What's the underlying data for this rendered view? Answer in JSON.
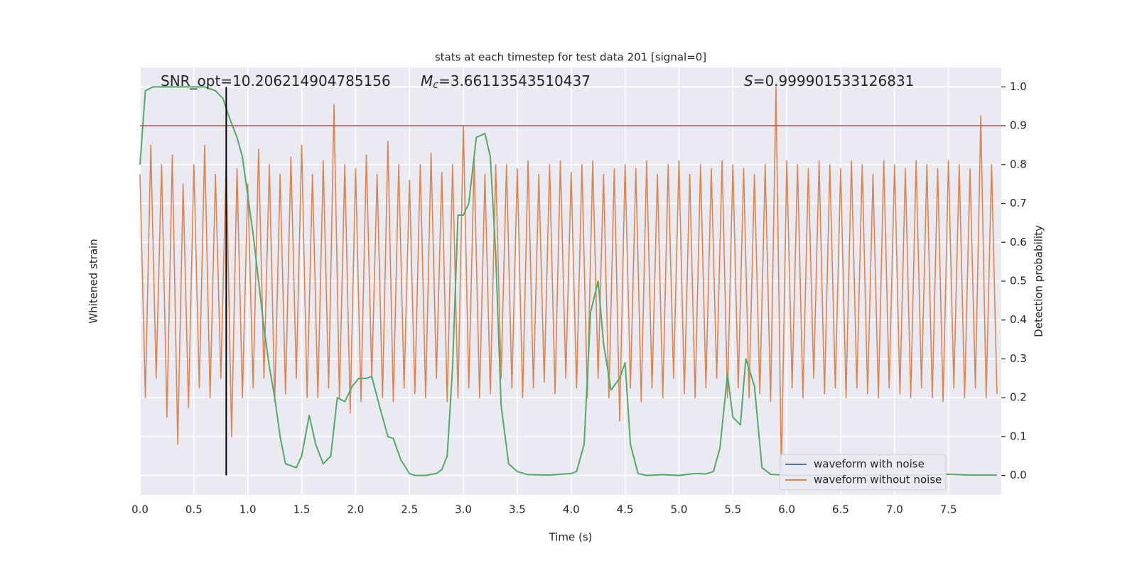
{
  "chart_data": {
    "type": "line",
    "title": "stats at each timestep for test data 201 [signal=0]",
    "annotations": [
      {
        "text": "SNR_opt=10.206214904785156"
      },
      {
        "symbol": "M",
        "subscript": "c",
        "text": "=3.66113543510437"
      },
      {
        "symbol": "S",
        "text": "=0.999901533126831"
      }
    ],
    "xlabel": "Time (s)",
    "ylabel": "Whitened strain",
    "y2label": "Detection probability",
    "xlim": [
      0,
      7.99
    ],
    "ylim": [
      -1.1,
      1.1
    ],
    "y2lim": [
      -0.05,
      1.05
    ],
    "xticks": [
      {
        "value": 0,
        "label": "0.0"
      },
      0.5,
      {
        "value": 1,
        "label": "1.0"
      },
      1.5,
      {
        "value": 2,
        "label": "2.0"
      },
      2.5,
      {
        "value": 3,
        "label": "3.0"
      },
      3.5,
      {
        "value": 4,
        "label": "4.0"
      },
      4.5,
      {
        "value": 5,
        "label": "5.0"
      },
      5.5,
      {
        "value": 6,
        "label": "6.0"
      },
      6.5,
      {
        "value": 7,
        "label": "7.0"
      },
      7.5
    ],
    "y2ticks": [
      {
        "value": 0,
        "label": "0.0"
      },
      0.1,
      0.2,
      0.3,
      0.4,
      0.5,
      0.6,
      0.7,
      0.8,
      0.9,
      {
        "value": 1,
        "label": "1.0"
      }
    ],
    "grid": true,
    "legend": "lower right",
    "series": [
      {
        "name": "waveform with noise",
        "color": "#4c72b0",
        "x": [],
        "values": []
      },
      {
        "name": "waveform without noise",
        "color": "#dd8452",
        "x": [
          0,
          0.05,
          0.1,
          0.15,
          0.2,
          0.25,
          0.3,
          0.35,
          0.4,
          0.45,
          0.5,
          0.55,
          0.6,
          0.65,
          0.7,
          0.75,
          0.8,
          0.85,
          0.9,
          0.95,
          1,
          1.05,
          1.1,
          1.15,
          1.2,
          1.25,
          1.3,
          1.35,
          1.4,
          1.45,
          1.5,
          1.55,
          1.6,
          1.65,
          1.7,
          1.75,
          1.8,
          1.85,
          1.9,
          1.95,
          2,
          2.05,
          2.1,
          2.15,
          2.2,
          2.25,
          2.3,
          2.35,
          2.4,
          2.45,
          2.5,
          2.55,
          2.6,
          2.65,
          2.7,
          2.75,
          2.8,
          2.85,
          2.9,
          2.95,
          3,
          3.05,
          3.1,
          3.15,
          3.2,
          3.25,
          3.3,
          3.35,
          3.4,
          3.45,
          3.5,
          3.55,
          3.6,
          3.65,
          3.7,
          3.75,
          3.8,
          3.85,
          3.9,
          3.95,
          4,
          4.05,
          4.1,
          4.15,
          4.2,
          4.25,
          4.3,
          4.35,
          4.4,
          4.45,
          4.5,
          4.55,
          4.6,
          4.65,
          4.7,
          4.75,
          4.8,
          4.85,
          4.9,
          4.95,
          5,
          5.05,
          5.1,
          5.15,
          5.2,
          5.25,
          5.3,
          5.35,
          5.4,
          5.45,
          5.5,
          5.55,
          5.6,
          5.65,
          5.7,
          5.75,
          5.8,
          5.85,
          5.9,
          5.95,
          6,
          6.05,
          6.1,
          6.15,
          6.2,
          6.25,
          6.3,
          6.35,
          6.4,
          6.45,
          6.5,
          6.55,
          6.6,
          6.65,
          6.7,
          6.75,
          6.8,
          6.85,
          6.9,
          6.95,
          7,
          7.05,
          7.1,
          7.15,
          7.2,
          7.25,
          7.3,
          7.35,
          7.4,
          7.45,
          7.5,
          7.55,
          7.6,
          7.65,
          7.7,
          7.75,
          7.8,
          7.85,
          7.9,
          7.95
        ],
        "values": [
          0.55,
          -0.6,
          0.7,
          -0.5,
          0.6,
          -0.7,
          0.65,
          -0.84,
          0.5,
          -0.65,
          0.6,
          -0.55,
          0.7,
          -0.6,
          0.55,
          -0.5,
          0.62,
          -0.8,
          0.58,
          -0.6,
          0.5,
          -0.55,
          0.68,
          -0.5,
          0.6,
          -0.62,
          0.55,
          -0.58,
          0.64,
          -0.5,
          0.7,
          -0.6,
          0.55,
          -0.6,
          0.62,
          -0.55,
          0.91,
          -0.6,
          0.6,
          -0.68,
          0.58,
          -0.62,
          0.65,
          -0.5,
          0.55,
          -0.6,
          0.72,
          -0.62,
          0.6,
          -0.55,
          0.52,
          -0.58,
          0.6,
          -0.6,
          0.66,
          -0.5,
          0.56,
          -0.62,
          0.6,
          -0.6,
          0.8,
          -0.55,
          0.62,
          -0.6,
          0.55,
          -0.58,
          0.6,
          -0.5,
          0.6,
          -0.55,
          0.58,
          -0.6,
          0.62,
          -0.55,
          0.55,
          -0.52,
          0.6,
          -0.58,
          0.62,
          -0.5,
          0.56,
          -0.55,
          0.6,
          -0.6,
          0.62,
          -0.5,
          0.55,
          -0.6,
          0.58,
          -0.72,
          0.6,
          -0.55,
          0.58,
          -0.62,
          0.62,
          -0.55,
          0.55,
          -0.6,
          0.6,
          -0.5,
          0.62,
          -0.58,
          0.55,
          -0.6,
          0.6,
          -0.55,
          0.58,
          -0.5,
          0.62,
          -0.6,
          0.6,
          -0.55,
          0.58,
          -0.6,
          0.55,
          -0.58,
          0.6,
          -0.62,
          1.0,
          -0.98,
          0.62,
          -0.55,
          0.6,
          -0.6,
          0.58,
          -0.5,
          0.62,
          -0.58,
          0.6,
          -0.55,
          0.58,
          -0.6,
          0.62,
          -0.55,
          0.6,
          -0.58,
          0.55,
          -0.6,
          0.62,
          -0.55,
          0.6,
          -0.58,
          0.58,
          -0.6,
          0.62,
          -0.55,
          0.6,
          -0.6,
          0.58,
          -0.62,
          0.62,
          -0.55,
          0.6,
          -0.6,
          0.58,
          -0.55,
          0.85,
          -0.6,
          0.6,
          -0.58
        ]
      },
      {
        "color": "#55a868",
        "axis": "y2",
        "x": [
          0,
          0.05,
          0.12,
          0.2,
          0.3,
          0.4,
          0.5,
          0.6,
          0.7,
          0.77,
          0.83,
          0.9,
          0.95,
          1.0,
          1.05,
          1.1,
          1.15,
          1.2,
          1.25,
          1.3,
          1.35,
          1.45,
          1.5,
          1.57,
          1.63,
          1.7,
          1.77,
          1.83,
          1.9,
          1.97,
          2.03,
          2.1,
          2.15,
          2.22,
          2.3,
          2.35,
          2.42,
          2.5,
          2.55,
          2.65,
          2.75,
          2.8,
          2.85,
          2.9,
          2.95,
          3.0,
          3.05,
          3.12,
          3.2,
          3.25,
          3.3,
          3.35,
          3.42,
          3.5,
          3.6,
          3.8,
          4.0,
          4.05,
          4.12,
          4.18,
          4.25,
          4.3,
          4.37,
          4.45,
          4.5,
          4.55,
          4.62,
          4.7,
          4.85,
          5.0,
          5.15,
          5.25,
          5.32,
          5.38,
          5.45,
          5.5,
          5.57,
          5.62,
          5.7,
          5.77,
          5.85,
          6.0,
          6.5,
          7.0,
          7.2,
          7.5,
          7.7,
          7.95
        ],
        "values": [
          0.8,
          0.99,
          1.0,
          1.0,
          1.0,
          1.0,
          1.0,
          1.0,
          0.99,
          0.97,
          0.92,
          0.87,
          0.82,
          0.72,
          0.62,
          0.5,
          0.38,
          0.28,
          0.2,
          0.1,
          0.03,
          0.02,
          0.05,
          0.155,
          0.08,
          0.03,
          0.05,
          0.2,
          0.19,
          0.23,
          0.25,
          0.25,
          0.255,
          0.18,
          0.1,
          0.095,
          0.04,
          0.005,
          0.0,
          0.0,
          0.005,
          0.015,
          0.05,
          0.28,
          0.67,
          0.67,
          0.7,
          0.87,
          0.88,
          0.82,
          0.57,
          0.18,
          0.03,
          0.01,
          0.002,
          0.001,
          0.005,
          0.01,
          0.08,
          0.42,
          0.5,
          0.34,
          0.22,
          0.25,
          0.29,
          0.08,
          0.005,
          0.0,
          0.002,
          0.0,
          0.005,
          0.004,
          0.01,
          0.07,
          0.26,
          0.15,
          0.13,
          0.3,
          0.23,
          0.02,
          0.003,
          0.0,
          0.0,
          0.001,
          0.0,
          0.003,
          0.001,
          0.001
        ]
      }
    ],
    "hline": {
      "y": 0.9,
      "axis": "y2",
      "color": "#c44e52"
    },
    "vline": {
      "x": 0.8,
      "color": "#000000"
    }
  }
}
